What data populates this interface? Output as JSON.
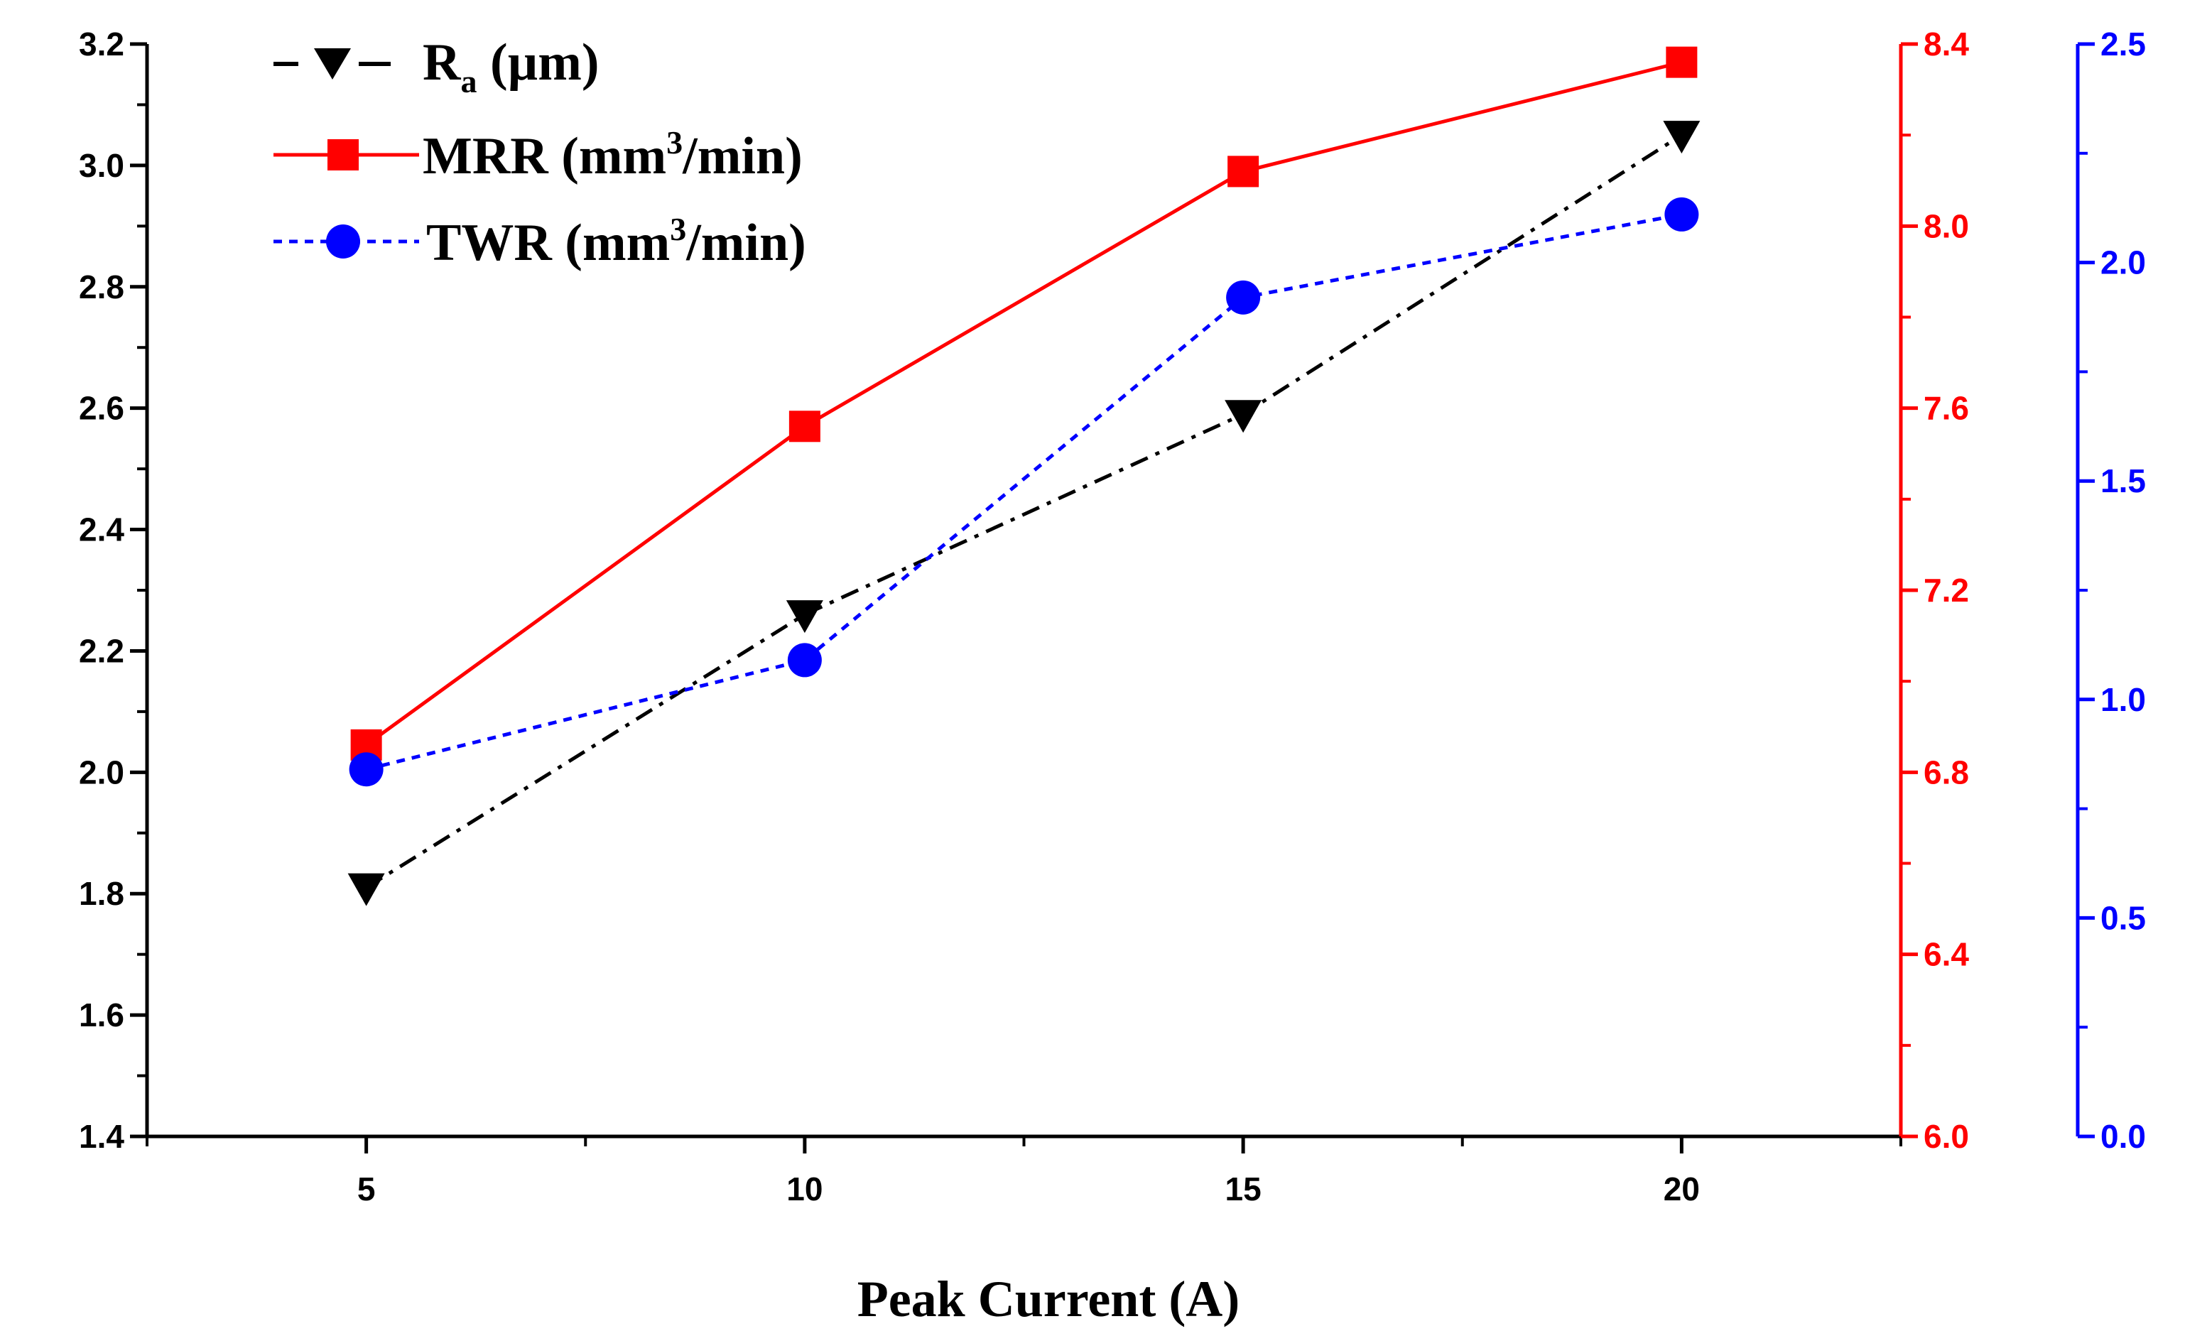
{
  "chart_data": {
    "type": "line",
    "x": [
      5,
      10,
      15,
      20
    ],
    "xlabel": "Peak Current (A)",
    "xlim": [
      2.5,
      22.5
    ],
    "x_ticks": [
      "5",
      "10",
      "15",
      "20"
    ],
    "axes": {
      "left": {
        "color": "#000000",
        "ylim": [
          1.4,
          3.2
        ],
        "ticks": [
          "1.4",
          "1.6",
          "1.8",
          "2.0",
          "2.2",
          "2.4",
          "2.6",
          "2.8",
          "3.0",
          "3.2"
        ]
      },
      "right1": {
        "color": "#ff0000",
        "ylim": [
          6.0,
          8.4
        ],
        "ticks": [
          "6.0",
          "6.4",
          "6.8",
          "7.2",
          "7.6",
          "8.0",
          "8.4"
        ]
      },
      "right2": {
        "color": "#0000ff",
        "ylim": [
          0.0,
          2.5
        ],
        "ticks": [
          "0.0",
          "0.5",
          "1.0",
          "1.5",
          "2.0",
          "2.5"
        ]
      }
    },
    "series": [
      {
        "name": "Ra (µm)",
        "axis": "left",
        "color": "#000000",
        "dash": "dashdot",
        "marker": "triangle-down",
        "values": [
          1.81,
          2.26,
          2.59,
          3.05
        ]
      },
      {
        "name": "MRR (mm3/min)",
        "axis": "right1",
        "color": "#ff0000",
        "dash": "solid",
        "marker": "square",
        "values": [
          6.86,
          7.56,
          8.12,
          8.36
        ]
      },
      {
        "name": "TWR (mm3/min)",
        "axis": "right2",
        "color": "#0000ff",
        "dash": "dotted",
        "marker": "circle",
        "values": [
          0.84,
          1.09,
          1.92,
          2.11
        ]
      }
    ],
    "legend": {
      "position": "top-left",
      "ra": {
        "main": "R",
        "sub": "a",
        "unit": " (µm)"
      },
      "mrr": {
        "main": "MRR (mm",
        "sup": "3",
        "unit": "/min)"
      },
      "twr": {
        "main": "TWR (mm",
        "sup": "3",
        "unit": "/min)"
      }
    }
  }
}
